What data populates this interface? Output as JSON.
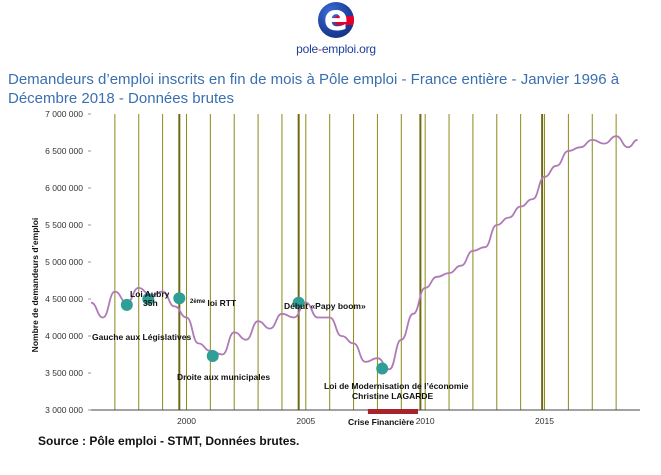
{
  "logo": {
    "icon": "pole-emploi-e-icon",
    "text_prefix": "pole",
    "text_dash": "-",
    "text_suffix": "emploi.org"
  },
  "title": "Demandeurs d’emploi inscrits en fin de mois à Pôle emploi - France entière - Janvier 1996 à Décembre 2018 - Données brutes",
  "source": "Source : Pôle emploi - STMT, Données brutes.",
  "colors": {
    "line": "#b07ab8",
    "vertical": "#8a8a1a",
    "marker": "#2f9e95",
    "crisis": "#a8242c",
    "title": "#3a6fb0"
  },
  "chart_data": {
    "type": "line",
    "title": "Demandeurs d’emploi inscrits en fin de mois à Pôle emploi - France entière",
    "xlabel": "",
    "ylabel": "Nombre de demandeurs d’emploi",
    "xlim": [
      1996.0,
      2019.0
    ],
    "ylim": [
      3000000,
      7000000
    ],
    "grid": "vertical",
    "yticks": [
      3000000,
      3500000,
      4000000,
      4500000,
      5000000,
      5500000,
      6000000,
      6500000,
      7000000
    ],
    "ytick_labels": [
      "3 000 000",
      "3 500 000",
      "4 000 000",
      "4 500 000",
      "5 000 000",
      "5 500 000",
      "6 000 000",
      "6 500 000",
      "7 000 000"
    ],
    "xticks": [
      2000,
      2005,
      2010,
      2015
    ],
    "xtick_labels": [
      "2000",
      "2005",
      "2010",
      "2015"
    ],
    "vertical_lines": [
      1997,
      1998,
      1999,
      2000,
      2001,
      2002,
      2003,
      2004,
      2005,
      2006,
      2007,
      2008,
      2009,
      2010,
      2011,
      2012,
      2013,
      2014,
      2015,
      2016,
      2017,
      2018
    ],
    "emphasized_lines": [
      1999.7,
      2004.7,
      2009.8,
      2014.9
    ],
    "series": [
      {
        "name": "Demandeurs d’emploi (données brutes)",
        "x": [
          1996.0,
          1996.5,
          1997.0,
          1997.5,
          1998.0,
          1998.5,
          1999.0,
          1999.5,
          2000.0,
          2000.5,
          2001.0,
          2001.5,
          2002.0,
          2002.5,
          2003.0,
          2003.5,
          2004.0,
          2004.5,
          2005.0,
          2005.5,
          2006.0,
          2006.5,
          2007.0,
          2007.5,
          2008.0,
          2008.5,
          2009.0,
          2009.5,
          2010.0,
          2010.5,
          2011.0,
          2011.5,
          2012.0,
          2012.5,
          2013.0,
          2013.5,
          2014.0,
          2014.5,
          2015.0,
          2015.5,
          2016.0,
          2016.5,
          2017.0,
          2017.5,
          2018.0,
          2018.5,
          2018.9
        ],
        "values": [
          4450000,
          4250000,
          4600000,
          4450000,
          4650000,
          4550000,
          4600000,
          4400000,
          4250000,
          3900000,
          3800000,
          3750000,
          4050000,
          3950000,
          4200000,
          4100000,
          4300000,
          4250000,
          4450000,
          4250000,
          4250000,
          4000000,
          3900000,
          3650000,
          3700000,
          3550000,
          3950000,
          4300000,
          4650000,
          4800000,
          4850000,
          4950000,
          5150000,
          5200000,
          5500000,
          5600000,
          5750000,
          5850000,
          6150000,
          6300000,
          6500000,
          6550000,
          6650000,
          6600000,
          6700000,
          6550000,
          6650000
        ]
      }
    ],
    "annotations": [
      {
        "label": "Gauche aux Législatives",
        "x": 1997.5,
        "y": 4420000
      },
      {
        "label": "Loi Aubry 35h",
        "x": 1998.4,
        "y": 4500000
      },
      {
        "label": "2ème loi RTT",
        "x": 1999.7,
        "y": 4510000
      },
      {
        "label": "Droite aux municipales",
        "x": 2001.1,
        "y": 3730000
      },
      {
        "label": "Début «Papy boom»",
        "x": 2004.7,
        "y": 4450000
      },
      {
        "label": "Loi de Modernisation de l’économie Christine LAGARDE",
        "x": 2008.2,
        "y": 3560000
      }
    ],
    "annotation_texts": {
      "gauche": "Gauche aux Législatives",
      "aubry_line1": "Loi Aubry",
      "aubry_line2": "35h",
      "rtt_sup": "2ème",
      "rtt_text": "loi RTT",
      "droite": "Droite aux municipales",
      "papy": "Début «Papy boom»",
      "lme_line1": "Loi de Modernisation de l’économie",
      "lme_line2": "Christine LAGARDE",
      "crise": "Crise Financière"
    },
    "crisis_band": {
      "label": "Crise Financière",
      "x_start": 2007.6,
      "x_end": 2009.7
    }
  }
}
